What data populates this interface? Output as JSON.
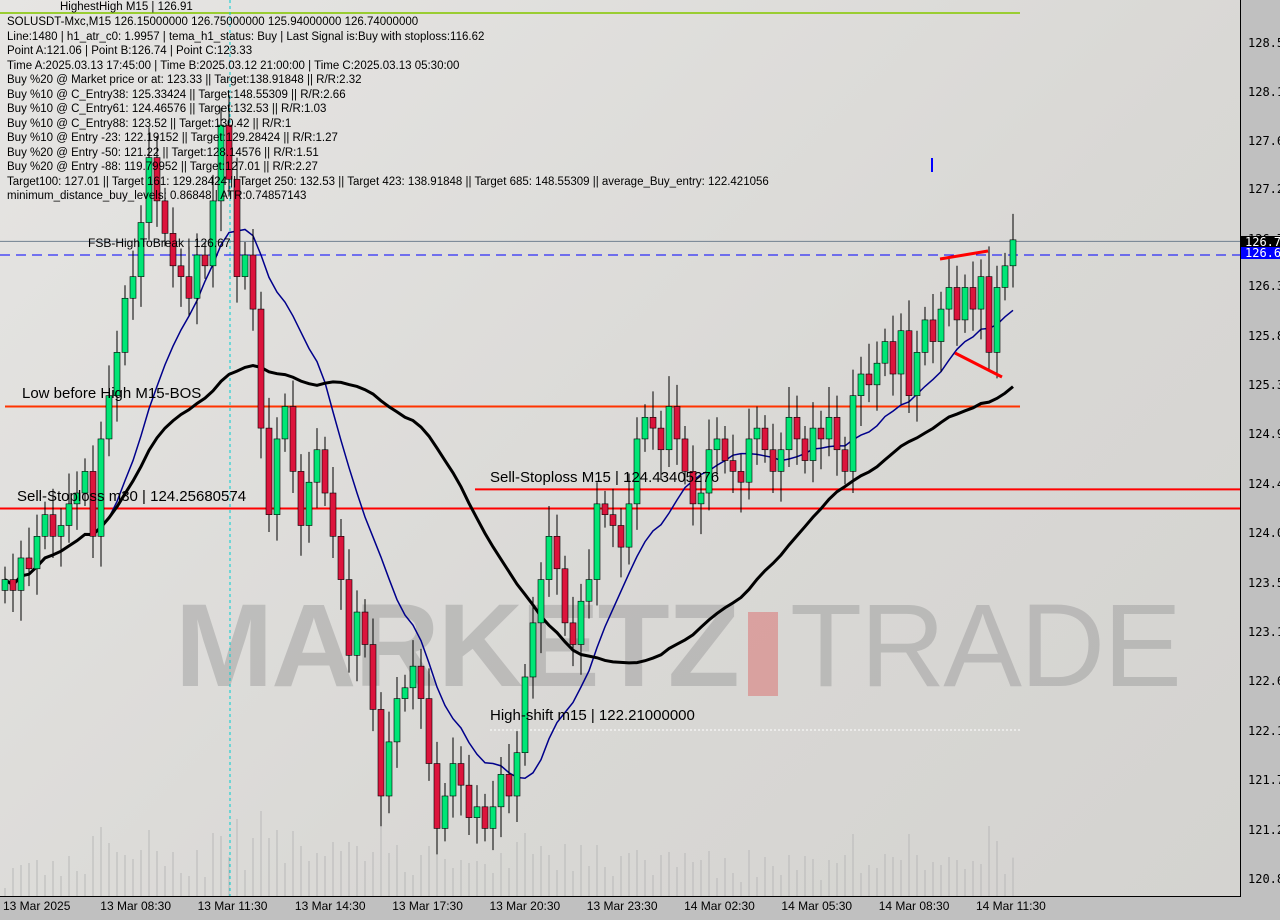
{
  "header": {
    "hidden_top": "HighestHigh   M15 | 126.91",
    "lines": [
      "SOLUSDT-Mxc,M15  126.15000000 126.75000000 125.94000000 126.74000000",
      "Line:1480 | h1_atr_c0: 1.9957 | tema_h1_status: Buy | Last Signal is:Buy with stoploss:116.62",
      "Point A:121.06 | Point B:126.74 | Point C:123.33",
      "Time A:2025.03.13 17:45:00 | Time B:2025.03.12 21:00:00 | Time C:2025.03.13 05:30:00",
      "Buy %20 @ Market price or at: 123.33 || Target:138.91848 || R/R:2.32",
      "Buy %10 @ C_Entry38: 125.33424 || Target:148.55309 || R/R:2.66",
      "Buy %10 @ C_Entry61: 124.46576 || Target:132.53 || R/R:1.03",
      "Buy %10 @ C_Entry88: 123.52 || Target:130.42 || R/R:1",
      "Buy %10 @ Entry -23: 122.19152 || Target:129.28424 || R/R:1.27",
      "Buy %20 @ Entry -50: 121.22 || Target:128.14576 || R/R:1.51",
      "Buy %20 @ Entry -88: 119.79952 || Target:127.01 || R/R:2.27",
      "Target100: 127.01 || Target 161: 129.28424 || Target 250: 132.53 || Target 423: 138.91848 || Target 685: 148.55309 || average_Buy_entry: 122.421056",
      "minimum_distance_buy_levels: 0.86848 | ATR:0.74857143"
    ]
  },
  "annotations": {
    "fsb": "FSB-HighToBreak | 126.67",
    "low_before_high": "Low before High   M15-BOS",
    "sell_sl_m30": "Sell-Stoploss m30 | 124.25680574",
    "sell_sl_m15": "Sell-Stoploss M15 | 124.43405276",
    "high_shift": "High-shift m15 | 122.21000000"
  },
  "watermark": {
    "left": "MARKETZ",
    "right": "TRADE"
  },
  "price_tags": {
    "last": "126.7",
    "bid": "126.6"
  },
  "colors": {
    "bull": "#00e676",
    "bear": "#dc143c",
    "ma_fast": "#00008b",
    "ma_slow": "#000000",
    "level": "#ff0000",
    "bos": "#ff3300",
    "tag_bid": "#0000ff"
  },
  "chart_data": {
    "type": "candlestick",
    "symbol": "SOLUSDT-Mxc",
    "timeframe": "M15",
    "ylim": [
      120.8,
      128.5
    ],
    "y_ticks": [
      "128.5",
      "128.1",
      "127.6",
      "127.2",
      "126.7",
      "126.3",
      "125.8",
      "125.3",
      "124.9",
      "124.4",
      "124.0",
      "123.5",
      "123.1",
      "122.6",
      "122.1",
      "121.7",
      "121.2",
      "120.8"
    ],
    "y_tick_values": [
      128.55,
      128.1,
      127.64,
      127.2,
      126.74,
      126.3,
      125.84,
      125.39,
      124.94,
      124.47,
      124.02,
      123.56,
      123.11,
      122.65,
      122.19,
      121.74,
      121.28,
      120.82
    ],
    "x_ticks": [
      "13 Mar 2025",
      "13 Mar 08:30",
      "13 Mar 11:30",
      "13 Mar 14:30",
      "13 Mar 17:30",
      "13 Mar 20:30",
      "13 Mar 23:30",
      "14 Mar 02:30",
      "14 Mar 05:30",
      "14 Mar 08:30",
      "14 Mar 11:30"
    ],
    "closes": [
      123.6,
      123.5,
      123.8,
      123.7,
      124.0,
      124.2,
      124.0,
      124.1,
      124.3,
      124.4,
      124.6,
      124.0,
      124.9,
      125.3,
      125.7,
      126.2,
      126.4,
      126.9,
      127.5,
      127.1,
      126.8,
      126.5,
      126.4,
      126.2,
      126.6,
      126.5,
      127.1,
      127.8,
      127.3,
      126.4,
      126.6,
      126.1,
      125.0,
      124.2,
      124.9,
      125.2,
      124.6,
      124.1,
      124.5,
      124.8,
      124.4,
      124.0,
      123.6,
      122.9,
      123.3,
      123.0,
      122.4,
      121.6,
      122.1,
      122.5,
      122.6,
      122.8,
      122.5,
      121.9,
      121.3,
      121.6,
      121.9,
      121.7,
      121.4,
      121.5,
      121.3,
      121.5,
      121.8,
      121.6,
      122.0,
      122.7,
      123.2,
      123.6,
      124.0,
      123.7,
      123.2,
      123.0,
      123.4,
      123.6,
      124.3,
      124.2,
      124.1,
      123.9,
      124.3,
      124.9,
      125.1,
      125.0,
      124.8,
      125.2,
      124.9,
      124.6,
      124.3,
      124.4,
      124.8,
      124.9,
      124.7,
      124.6,
      124.5,
      124.9,
      125.0,
      124.8,
      124.6,
      124.8,
      125.1,
      124.9,
      124.7,
      125.0,
      124.9,
      125.1,
      124.8,
      124.6,
      125.3,
      125.5,
      125.4,
      125.6,
      125.8,
      125.5,
      125.9,
      125.3,
      125.7,
      126.0,
      125.8,
      126.1,
      126.3,
      126.0,
      126.3,
      126.1,
      126.4,
      125.7,
      126.3,
      126.5,
      126.74
    ],
    "levels": {
      "fsb_high": 126.67,
      "bid": 126.6,
      "bos": 125.2,
      "sell_sl_m15": 124.43405276,
      "sell_sl_m30": 124.25680574,
      "high_shift": 122.21
    }
  }
}
